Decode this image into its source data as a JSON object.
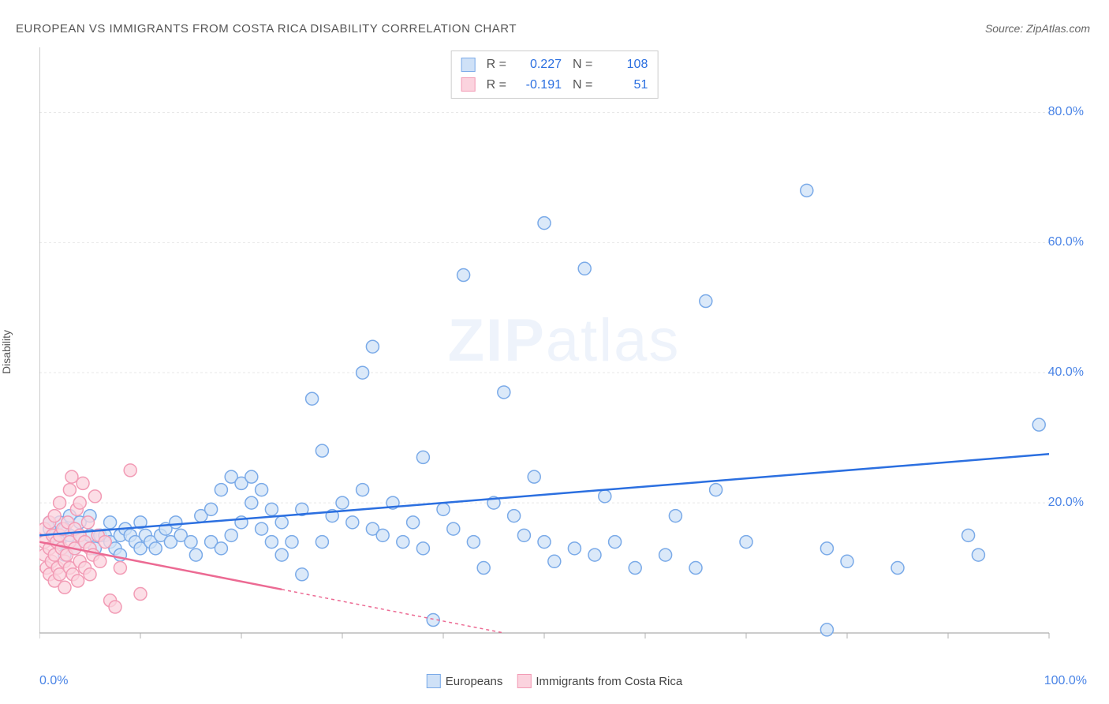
{
  "title": "EUROPEAN VS IMMIGRANTS FROM COSTA RICA DISABILITY CORRELATION CHART",
  "source": "Source: ZipAtlas.com",
  "ylabel": "Disability",
  "watermark": "ZIPatlas",
  "chart": {
    "type": "scatter",
    "background_color": "#ffffff",
    "grid_color": "#e8e8e8",
    "axis_color": "#999999",
    "tick_color": "#b0b0b0",
    "xlim": [
      0,
      100
    ],
    "ylim": [
      0,
      90
    ],
    "x_axis_labels": {
      "left": "0.0%",
      "right": "100.0%"
    },
    "x_ticks": [
      0,
      10,
      20,
      30,
      40,
      50,
      60,
      70,
      80,
      90,
      100
    ],
    "y_ticks": [
      {
        "v": 20,
        "label": "20.0%"
      },
      {
        "v": 40,
        "label": "40.0%"
      },
      {
        "v": 60,
        "label": "60.0%"
      },
      {
        "v": 80,
        "label": "80.0%"
      }
    ],
    "marker_radius": 8,
    "marker_stroke_width": 1.5,
    "line_width": 2.5,
    "series": [
      {
        "name": "Europeans",
        "fill": "#cfe1f7",
        "stroke": "#7aaae8",
        "line_color": "#2b6fe0",
        "R": "0.227",
        "N": "108",
        "trend": {
          "x1": 0,
          "y1": 15,
          "x2": 100,
          "y2": 27.5,
          "dash_from_x": null
        },
        "points": [
          [
            1,
            16
          ],
          [
            1,
            17
          ],
          [
            1.5,
            15
          ],
          [
            2,
            14
          ],
          [
            2,
            17
          ],
          [
            2.5,
            12
          ],
          [
            2.5,
            16
          ],
          [
            3,
            15
          ],
          [
            3,
            18
          ],
          [
            3.5,
            13
          ],
          [
            4,
            15
          ],
          [
            4,
            17
          ],
          [
            4.5,
            14
          ],
          [
            5,
            15
          ],
          [
            5,
            18
          ],
          [
            5.5,
            13
          ],
          [
            6,
            15
          ],
          [
            6.5,
            15
          ],
          [
            7,
            14
          ],
          [
            7,
            17
          ],
          [
            7.5,
            13
          ],
          [
            8,
            12
          ],
          [
            8,
            15
          ],
          [
            8.5,
            16
          ],
          [
            9,
            15
          ],
          [
            9.5,
            14
          ],
          [
            10,
            13
          ],
          [
            10,
            17
          ],
          [
            10.5,
            15
          ],
          [
            11,
            14
          ],
          [
            11.5,
            13
          ],
          [
            12,
            15
          ],
          [
            12.5,
            16
          ],
          [
            13,
            14
          ],
          [
            13.5,
            17
          ],
          [
            14,
            15
          ],
          [
            15,
            14
          ],
          [
            15.5,
            12
          ],
          [
            16,
            18
          ],
          [
            17,
            14
          ],
          [
            17,
            19
          ],
          [
            18,
            13
          ],
          [
            18,
            22
          ],
          [
            19,
            15
          ],
          [
            19,
            24
          ],
          [
            20,
            17
          ],
          [
            20,
            23
          ],
          [
            21,
            20
          ],
          [
            21,
            24
          ],
          [
            22,
            16
          ],
          [
            22,
            22
          ],
          [
            23,
            19
          ],
          [
            23,
            14
          ],
          [
            24,
            12
          ],
          [
            24,
            17
          ],
          [
            25,
            14
          ],
          [
            26,
            9
          ],
          [
            26,
            19
          ],
          [
            27,
            36
          ],
          [
            28,
            14
          ],
          [
            28,
            28
          ],
          [
            29,
            18
          ],
          [
            30,
            20
          ],
          [
            31,
            17
          ],
          [
            32,
            22
          ],
          [
            32,
            40
          ],
          [
            33,
            16
          ],
          [
            33,
            44
          ],
          [
            34,
            15
          ],
          [
            35,
            20
          ],
          [
            36,
            14
          ],
          [
            37,
            17
          ],
          [
            38,
            27
          ],
          [
            38,
            13
          ],
          [
            39,
            2
          ],
          [
            40,
            19
          ],
          [
            41,
            16
          ],
          [
            42,
            55
          ],
          [
            43,
            14
          ],
          [
            44,
            10
          ],
          [
            45,
            20
          ],
          [
            46,
            37
          ],
          [
            47,
            18
          ],
          [
            48,
            15
          ],
          [
            49,
            24
          ],
          [
            50,
            14
          ],
          [
            50,
            63
          ],
          [
            51,
            11
          ],
          [
            53,
            13
          ],
          [
            54,
            56
          ],
          [
            55,
            12
          ],
          [
            56,
            21
          ],
          [
            57,
            14
          ],
          [
            59,
            10
          ],
          [
            62,
            12
          ],
          [
            63,
            18
          ],
          [
            65,
            10
          ],
          [
            66,
            51
          ],
          [
            67,
            22
          ],
          [
            70,
            14
          ],
          [
            76,
            68
          ],
          [
            78,
            13
          ],
          [
            78,
            0.5
          ],
          [
            80,
            11
          ],
          [
            85,
            10
          ],
          [
            92,
            15
          ],
          [
            93,
            12
          ],
          [
            99,
            32
          ]
        ]
      },
      {
        "name": "Immigrants from Costa Rica",
        "fill": "#fbd3de",
        "stroke": "#f29bb5",
        "line_color": "#ec6a93",
        "R": "-0.191",
        "N": "51",
        "trend": {
          "x1": 0,
          "y1": 14,
          "x2": 46,
          "y2": 0,
          "dash_from_x": 24
        },
        "points": [
          [
            0.5,
            14
          ],
          [
            0.5,
            12
          ],
          [
            0.5,
            16
          ],
          [
            0.7,
            10
          ],
          [
            1,
            9
          ],
          [
            1,
            13
          ],
          [
            1,
            17
          ],
          [
            1.2,
            11
          ],
          [
            1.3,
            15
          ],
          [
            1.5,
            8
          ],
          [
            1.5,
            12
          ],
          [
            1.5,
            18
          ],
          [
            1.7,
            14
          ],
          [
            1.8,
            10
          ],
          [
            2,
            9
          ],
          [
            2,
            15
          ],
          [
            2,
            20
          ],
          [
            2.2,
            13
          ],
          [
            2.3,
            16
          ],
          [
            2.5,
            11
          ],
          [
            2.5,
            7
          ],
          [
            2.7,
            12
          ],
          [
            2.8,
            17
          ],
          [
            3,
            10
          ],
          [
            3,
            14
          ],
          [
            3,
            22
          ],
          [
            3.2,
            24
          ],
          [
            3.3,
            9
          ],
          [
            3.5,
            13
          ],
          [
            3.5,
            16
          ],
          [
            3.7,
            19
          ],
          [
            3.8,
            8
          ],
          [
            4,
            11
          ],
          [
            4,
            15
          ],
          [
            4,
            20
          ],
          [
            4.3,
            23
          ],
          [
            4.5,
            10
          ],
          [
            4.5,
            14
          ],
          [
            4.8,
            17
          ],
          [
            5,
            9
          ],
          [
            5,
            13
          ],
          [
            5.3,
            12
          ],
          [
            5.5,
            21
          ],
          [
            5.8,
            15
          ],
          [
            6,
            11
          ],
          [
            6.5,
            14
          ],
          [
            7,
            5
          ],
          [
            7.5,
            4
          ],
          [
            8,
            10
          ],
          [
            9,
            25
          ],
          [
            10,
            6
          ]
        ]
      }
    ],
    "legend_bottom": [
      {
        "label": "Europeans",
        "fill": "#cfe1f7",
        "stroke": "#7aaae8"
      },
      {
        "label": "Immigrants from Costa Rica",
        "fill": "#fbd3de",
        "stroke": "#f29bb5"
      }
    ]
  }
}
